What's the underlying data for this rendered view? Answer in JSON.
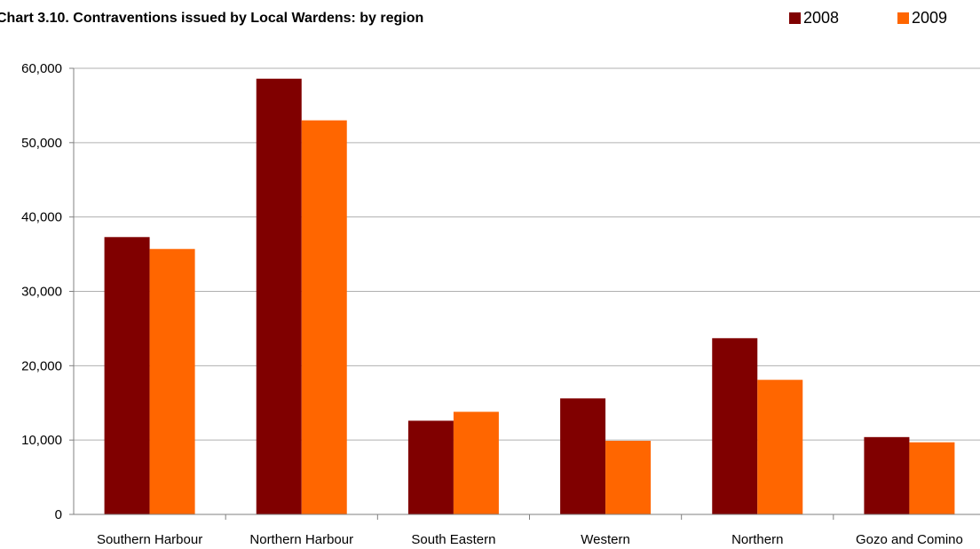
{
  "chart_data": {
    "type": "bar",
    "title": "Chart 3.10. Contraventions issued by Local Wardens: by region",
    "categories": [
      "Southern Harbour",
      "Northern Harbour",
      "South Eastern",
      "Western",
      "Northern",
      "Gozo and Comino"
    ],
    "series": [
      {
        "name": "2008",
        "color": "#800000",
        "values": [
          37300,
          58600,
          12600,
          15600,
          23700,
          10400
        ]
      },
      {
        "name": "2009",
        "color": "#ff6600",
        "values": [
          35700,
          53000,
          13800,
          9900,
          18100,
          9700
        ]
      }
    ],
    "ylim": [
      0,
      60000
    ],
    "yticks": [
      "0",
      "10,000",
      "20,000",
      "30,000",
      "40,000",
      "50,000",
      "60,000"
    ],
    "ytick_values": [
      0,
      10000,
      20000,
      30000,
      40000,
      50000,
      60000
    ],
    "grid": true,
    "legend_position": "top-right"
  }
}
